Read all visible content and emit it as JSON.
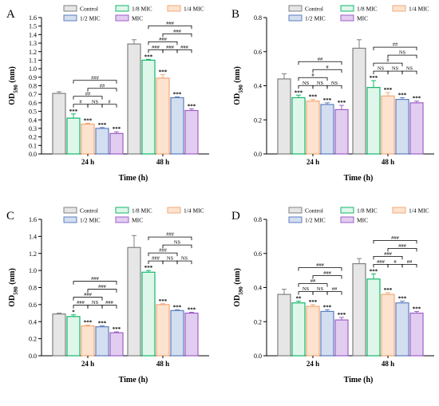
{
  "colors": {
    "Control": {
      "fill": "#e6e6e6",
      "stroke": "#808080"
    },
    "1/8 MIC": {
      "fill": "#dff7ea",
      "stroke": "#12b76a"
    },
    "1/4 MIC": {
      "fill": "#fde3cf",
      "stroke": "#f2a877"
    },
    "1/2 MIC": {
      "fill": "#d3def0",
      "stroke": "#5e7fbf"
    },
    "MIC": {
      "fill": "#e2cdf0",
      "stroke": "#9d5fc8"
    }
  },
  "chart_data": [
    {
      "panel": "A",
      "type": "bar",
      "categories": [
        "24 h",
        "48 h"
      ],
      "xlabel": "Time (h)",
      "ylabel": "OD590 (nm)",
      "ylim": [
        0,
        1.6
      ],
      "yticks": [
        "0.0",
        "0.1",
        "0.2",
        "0.3",
        "0.4",
        "0.5",
        "0.6",
        "0.7",
        "0.8",
        "0.9",
        "1.0",
        "1.1",
        "1.2",
        "1.3",
        "1.4",
        "1.5",
        "1.6"
      ],
      "legend": [
        "Control",
        "1/8 MIC",
        "1/4 MIC",
        "1/2 MIC",
        "MIC"
      ],
      "series": [
        {
          "name": "Control",
          "values": [
            0.71,
            1.29
          ],
          "errors": [
            0.02,
            0.05
          ],
          "stars": [
            "",
            ""
          ]
        },
        {
          "name": "1/8 MIC",
          "values": [
            0.42,
            1.1
          ],
          "errors": [
            0.05,
            0.01
          ],
          "stars": [
            "***",
            "***"
          ]
        },
        {
          "name": "1/4 MIC",
          "values": [
            0.35,
            0.89
          ],
          "errors": [
            0.01,
            0.04
          ],
          "stars": [
            "***",
            "***"
          ]
        },
        {
          "name": "1/2 MIC",
          "values": [
            0.3,
            0.66
          ],
          "errors": [
            0.01,
            0.01
          ],
          "stars": [
            "***",
            "***"
          ]
        },
        {
          "name": "MIC",
          "values": [
            0.24,
            0.51
          ],
          "errors": [
            0.02,
            0.02
          ],
          "stars": [
            "***",
            "***"
          ]
        }
      ],
      "brackets": [
        [
          {
            "a": 1,
            "b": 2,
            "label": "#",
            "level": 0
          },
          {
            "a": 2,
            "b": 3,
            "label": "NS",
            "level": 0
          },
          {
            "a": 3,
            "b": 4,
            "label": "#",
            "level": 0
          },
          {
            "a": 1,
            "b": 3,
            "label": "##",
            "level": 1
          },
          {
            "a": 2,
            "b": 4,
            "label": "##",
            "level": 2
          },
          {
            "a": 1,
            "b": 4,
            "label": "###",
            "level": 3
          }
        ],
        [
          {
            "a": 1,
            "b": 2,
            "label": "###",
            "level": 0
          },
          {
            "a": 2,
            "b": 3,
            "label": "###",
            "level": 0
          },
          {
            "a": 3,
            "b": 4,
            "label": "###",
            "level": 0
          },
          {
            "a": 1,
            "b": 3,
            "label": "###",
            "level": 1
          },
          {
            "a": 2,
            "b": 4,
            "label": "###",
            "level": 2
          },
          {
            "a": 1,
            "b": 4,
            "label": "###",
            "level": 3
          }
        ]
      ]
    },
    {
      "panel": "B",
      "type": "bar",
      "categories": [
        "24 h",
        "48 h"
      ],
      "xlabel": "Time (h)",
      "ylabel": "OD590 (nm)",
      "ylim": [
        0,
        0.8
      ],
      "yticks": [
        "0.0",
        "0.2",
        "0.4",
        "0.6",
        "0.8"
      ],
      "legend": [
        "Control",
        "1/8 MIC",
        "1/4 MIC",
        "1/2 MIC",
        "MIC"
      ],
      "series": [
        {
          "name": "Control",
          "values": [
            0.44,
            0.62
          ],
          "errors": [
            0.03,
            0.05
          ],
          "stars": [
            "",
            ""
          ]
        },
        {
          "name": "1/8 MIC",
          "values": [
            0.33,
            0.39
          ],
          "errors": [
            0.015,
            0.04
          ],
          "stars": [
            "***",
            "***"
          ]
        },
        {
          "name": "1/4 MIC",
          "values": [
            0.31,
            0.34
          ],
          "errors": [
            0.01,
            0.02
          ],
          "stars": [
            "***",
            "***"
          ]
        },
        {
          "name": "1/2 MIC",
          "values": [
            0.29,
            0.32
          ],
          "errors": [
            0.01,
            0.01
          ],
          "stars": [
            "***",
            "***"
          ]
        },
        {
          "name": "MIC",
          "values": [
            0.26,
            0.3
          ],
          "errors": [
            0.025,
            0.01
          ],
          "stars": [
            "***",
            "***"
          ]
        }
      ],
      "brackets": [
        [
          {
            "a": 1,
            "b": 2,
            "label": "NS",
            "level": 0
          },
          {
            "a": 2,
            "b": 3,
            "label": "NS",
            "level": 0
          },
          {
            "a": 3,
            "b": 4,
            "label": "NS",
            "level": 0
          },
          {
            "a": 1,
            "b": 3,
            "label": "#",
            "level": 1
          },
          {
            "a": 2,
            "b": 4,
            "label": "#",
            "level": 2
          },
          {
            "a": 1,
            "b": 4,
            "label": "##",
            "level": 3
          }
        ],
        [
          {
            "a": 1,
            "b": 2,
            "label": "NS",
            "level": 0
          },
          {
            "a": 2,
            "b": 3,
            "label": "NS",
            "level": 0
          },
          {
            "a": 3,
            "b": 4,
            "label": "NS",
            "level": 0
          },
          {
            "a": 1,
            "b": 3,
            "label": "#",
            "level": 1
          },
          {
            "a": 2,
            "b": 4,
            "label": "NS",
            "level": 2
          },
          {
            "a": 1,
            "b": 4,
            "label": "##",
            "level": 3
          }
        ]
      ]
    },
    {
      "panel": "C",
      "type": "bar",
      "categories": [
        "24 h",
        "48 h"
      ],
      "xlabel": "Time (h)",
      "ylabel": "OD590 (nm)",
      "ylim": [
        0,
        1.6
      ],
      "yticks": [
        "0.0",
        "0.2",
        "0.4",
        "0.6",
        "0.8",
        "1.0",
        "1.2",
        "1.4",
        "1.6"
      ],
      "legend": [
        "Control",
        "1/8 MIC",
        "1/4 MIC",
        "1/2 MIC",
        "MIC"
      ],
      "series": [
        {
          "name": "Control",
          "values": [
            0.49,
            1.27
          ],
          "errors": [
            0.01,
            0.14
          ],
          "stars": [
            "",
            ""
          ]
        },
        {
          "name": "1/8 MIC",
          "values": [
            0.46,
            0.98
          ],
          "errors": [
            0.02,
            0.02
          ],
          "stars": [
            "*",
            "***"
          ]
        },
        {
          "name": "1/4 MIC",
          "values": [
            0.35,
            0.6
          ],
          "errors": [
            0.01,
            0.01
          ],
          "stars": [
            "***",
            "***"
          ]
        },
        {
          "name": "1/2 MIC",
          "values": [
            0.34,
            0.53
          ],
          "errors": [
            0.01,
            0.01
          ],
          "stars": [
            "***",
            "***"
          ]
        },
        {
          "name": "MIC",
          "values": [
            0.27,
            0.5
          ],
          "errors": [
            0.01,
            0.01
          ],
          "stars": [
            "***",
            "***"
          ]
        }
      ],
      "brackets": [
        [
          {
            "a": 1,
            "b": 2,
            "label": "###",
            "level": 0
          },
          {
            "a": 2,
            "b": 3,
            "label": "NS",
            "level": 0
          },
          {
            "a": 3,
            "b": 4,
            "label": "###",
            "level": 0
          },
          {
            "a": 1,
            "b": 3,
            "label": "###",
            "level": 1
          },
          {
            "a": 2,
            "b": 4,
            "label": "###",
            "level": 2
          },
          {
            "a": 1,
            "b": 4,
            "label": "###",
            "level": 3
          }
        ],
        [
          {
            "a": 1,
            "b": 2,
            "label": "###",
            "level": 0
          },
          {
            "a": 2,
            "b": 3,
            "label": "NS",
            "level": 0
          },
          {
            "a": 3,
            "b": 4,
            "label": "NS",
            "level": 0
          },
          {
            "a": 1,
            "b": 3,
            "label": "###",
            "level": 1
          },
          {
            "a": 2,
            "b": 4,
            "label": "NS",
            "level": 2
          },
          {
            "a": 1,
            "b": 4,
            "label": "###",
            "level": 3
          }
        ]
      ]
    },
    {
      "panel": "D",
      "type": "bar",
      "categories": [
        "24 h",
        "48 h"
      ],
      "xlabel": "Time (h)",
      "ylabel": "OD590 (nm)",
      "ylim": [
        0,
        0.8
      ],
      "yticks": [
        "0.0",
        "0.2",
        "0.4",
        "0.6",
        "0.8"
      ],
      "legend": [
        "Control",
        "1/8 MIC",
        "1/4 MIC",
        "1/2 MIC",
        "MIC"
      ],
      "series": [
        {
          "name": "Control",
          "values": [
            0.36,
            0.54
          ],
          "errors": [
            0.03,
            0.03
          ],
          "stars": [
            "",
            ""
          ]
        },
        {
          "name": "1/8 MIC",
          "values": [
            0.31,
            0.45
          ],
          "errors": [
            0.01,
            0.03
          ],
          "stars": [
            "**",
            "***"
          ]
        },
        {
          "name": "1/4 MIC",
          "values": [
            0.29,
            0.36
          ],
          "errors": [
            0.01,
            0.01
          ],
          "stars": [
            "***",
            "***"
          ]
        },
        {
          "name": "1/2 MIC",
          "values": [
            0.26,
            0.31
          ],
          "errors": [
            0.01,
            0.01
          ],
          "stars": [
            "***",
            "***"
          ]
        },
        {
          "name": "MIC",
          "values": [
            0.21,
            0.25
          ],
          "errors": [
            0.015,
            0.01
          ],
          "stars": [
            "***",
            "***"
          ]
        }
      ],
      "brackets": [
        [
          {
            "a": 1,
            "b": 2,
            "label": "NS",
            "level": 0
          },
          {
            "a": 2,
            "b": 3,
            "label": "NS",
            "level": 0
          },
          {
            "a": 3,
            "b": 4,
            "label": "##",
            "level": 0
          },
          {
            "a": 1,
            "b": 3,
            "label": "##",
            "level": 1
          },
          {
            "a": 2,
            "b": 4,
            "label": "###",
            "level": 2
          },
          {
            "a": 1,
            "b": 4,
            "label": "###",
            "level": 3
          }
        ],
        [
          {
            "a": 1,
            "b": 2,
            "label": "###",
            "level": 0
          },
          {
            "a": 2,
            "b": 3,
            "label": "#",
            "level": 0
          },
          {
            "a": 3,
            "b": 4,
            "label": "##",
            "level": 0
          },
          {
            "a": 1,
            "b": 3,
            "label": "###",
            "level": 1
          },
          {
            "a": 2,
            "b": 4,
            "label": "###",
            "level": 2
          },
          {
            "a": 1,
            "b": 4,
            "label": "###",
            "level": 3
          }
        ]
      ]
    }
  ]
}
